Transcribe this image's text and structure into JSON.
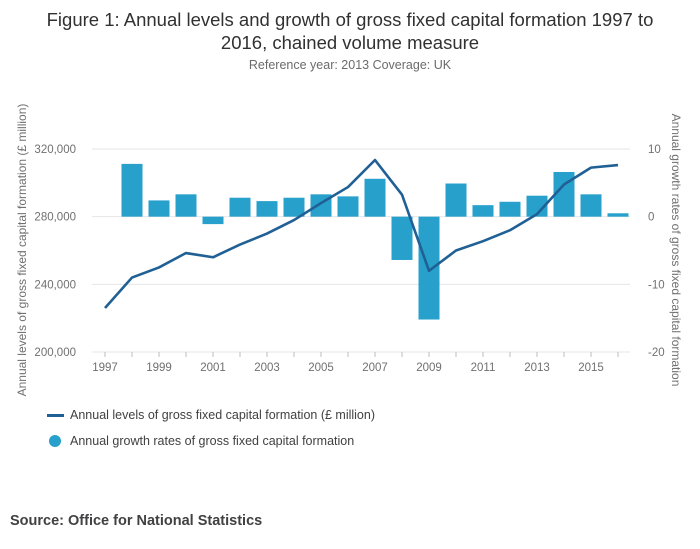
{
  "title_line1": "Figure 1: Annual levels and growth of gross fixed capital formation 1997 to",
  "title_line2": "2016, chained volume measure",
  "subtitle": "Reference year: 2013 Coverage: UK",
  "source": "Source: Office for National Statistics",
  "colors": {
    "line": "#206095",
    "bars": "#27a0cc",
    "grid": "#e6e6e6",
    "axis_text": "#707070"
  },
  "chart_data": {
    "type": "bar+line",
    "years": [
      1997,
      1998,
      1999,
      2000,
      2001,
      2002,
      2003,
      2004,
      2005,
      2006,
      2007,
      2008,
      2009,
      2010,
      2011,
      2012,
      2013,
      2014,
      2015,
      2016
    ],
    "x_tick_labels": [
      "1997",
      "1999",
      "2001",
      "2003",
      "2005",
      "2007",
      "2009",
      "2011",
      "2013",
      "2015"
    ],
    "series": [
      {
        "name": "Annual levels of gross fixed capital formation (£ million)",
        "type": "line",
        "axis": "left",
        "values": [
          226000,
          244000,
          250000,
          258500,
          256000,
          263500,
          270000,
          278000,
          288000,
          297500,
          313500,
          293000,
          248000,
          260000,
          265500,
          272000,
          281500,
          299000,
          309000,
          310500
        ]
      },
      {
        "name": "Annual growth rates of gross fixed capital formation",
        "type": "bar",
        "axis": "right",
        "values": [
          null,
          7.8,
          2.4,
          3.3,
          -1.1,
          2.8,
          2.3,
          2.8,
          3.3,
          3.0,
          5.6,
          -6.4,
          -15.2,
          4.9,
          1.7,
          2.2,
          3.1,
          6.6,
          3.3,
          0.5
        ]
      }
    ],
    "y_left": {
      "label": "Annual levels of gross fixed capital formation (£ million)",
      "ticks": [
        200000,
        240000,
        280000,
        320000
      ],
      "tick_labels": [
        "200,000",
        "240,000",
        "280,000",
        "320,000"
      ],
      "range": [
        200000,
        320000
      ]
    },
    "y_right": {
      "label": "Annual growth rates of gross fixed capital formation",
      "ticks": [
        -20,
        -10,
        0,
        10
      ],
      "tick_labels": [
        "-20",
        "-10",
        "0",
        "10"
      ],
      "range": [
        -20,
        10
      ]
    },
    "grid": true,
    "legend_position": "bottom-left"
  }
}
